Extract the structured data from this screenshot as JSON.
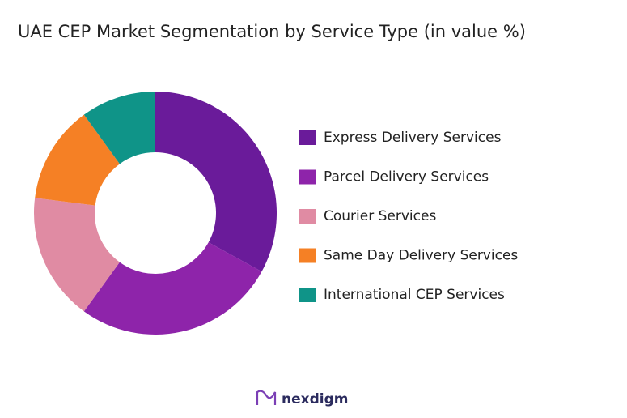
{
  "chart_data": {
    "type": "pie",
    "donut": true,
    "title": "UAE CEP Market Segmentation by Service Type (in value %)",
    "categories": [
      "Express Delivery Services",
      "Parcel Delivery Services",
      "Courier Services",
      "Same Day Delivery Services",
      "International CEP Services"
    ],
    "values": [
      33,
      27,
      17,
      13,
      10
    ],
    "colors": [
      "#6a1b9a",
      "#8e24aa",
      "#e08ba3",
      "#f58025",
      "#0f9488"
    ],
    "legend": "right"
  },
  "logo": "nexdigm"
}
